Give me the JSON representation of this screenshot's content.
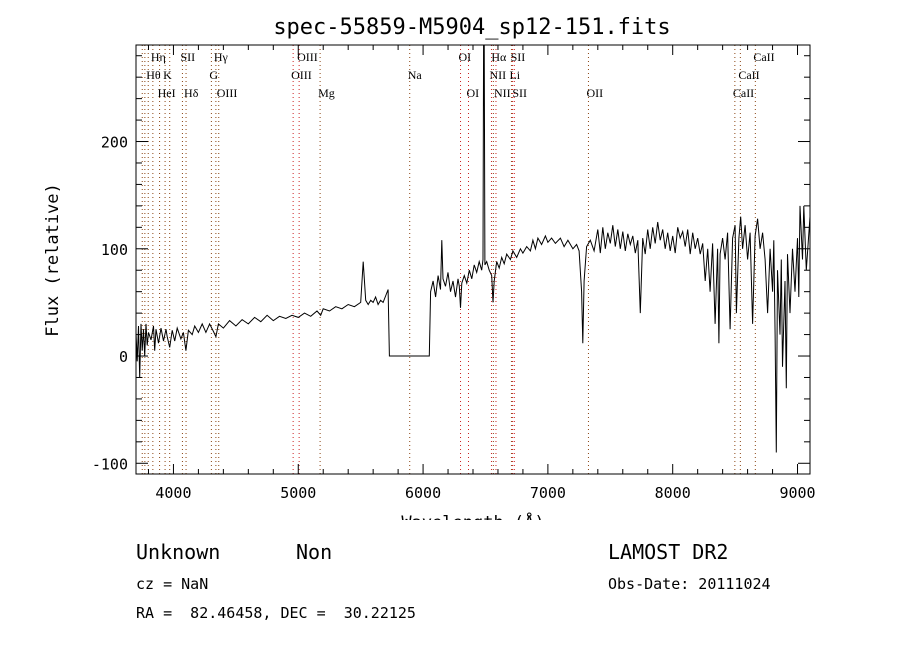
{
  "chart_data": {
    "type": "line",
    "title": "spec-55859-M5904_sp12-151.fits",
    "xlabel": "Wavelength (Å)",
    "ylabel": "Flux (relative)",
    "xlim": [
      3700,
      9100
    ],
    "ylim": [
      -110,
      290
    ],
    "xticks": [
      4000,
      5000,
      6000,
      7000,
      8000,
      9000
    ],
    "yticks": [
      -100,
      0,
      100,
      200
    ],
    "grid": false,
    "series": [
      {
        "values": [
          [
            3700,
            22
          ],
          [
            3710,
            -5
          ],
          [
            3720,
            28
          ],
          [
            3730,
            -20
          ],
          [
            3740,
            30
          ],
          [
            3750,
            5
          ],
          [
            3760,
            25
          ],
          [
            3770,
            0
          ],
          [
            3780,
            30
          ],
          [
            3790,
            10
          ],
          [
            3800,
            22
          ],
          [
            3820,
            15
          ],
          [
            3840,
            28
          ],
          [
            3850,
            5
          ],
          [
            3860,
            25
          ],
          [
            3880,
            12
          ],
          [
            3900,
            26
          ],
          [
            3920,
            14
          ],
          [
            3940,
            25
          ],
          [
            3950,
            18
          ],
          [
            3970,
            8
          ],
          [
            3990,
            24
          ],
          [
            4010,
            14
          ],
          [
            4030,
            26
          ],
          [
            4060,
            16
          ],
          [
            4080,
            22
          ],
          [
            4100,
            5
          ],
          [
            4120,
            24
          ],
          [
            4150,
            20
          ],
          [
            4170,
            28
          ],
          [
            4200,
            22
          ],
          [
            4230,
            30
          ],
          [
            4260,
            22
          ],
          [
            4290,
            30
          ],
          [
            4320,
            23
          ],
          [
            4340,
            18
          ],
          [
            4360,
            30
          ],
          [
            4400,
            26
          ],
          [
            4450,
            33
          ],
          [
            4500,
            28
          ],
          [
            4550,
            34
          ],
          [
            4600,
            30
          ],
          [
            4650,
            36
          ],
          [
            4700,
            32
          ],
          [
            4750,
            38
          ],
          [
            4800,
            33
          ],
          [
            4850,
            37
          ],
          [
            4900,
            35
          ],
          [
            4950,
            38
          ],
          [
            5000,
            36
          ],
          [
            5050,
            40
          ],
          [
            5100,
            37
          ],
          [
            5150,
            42
          ],
          [
            5180,
            38
          ],
          [
            5200,
            44
          ],
          [
            5250,
            42
          ],
          [
            5300,
            46
          ],
          [
            5350,
            44
          ],
          [
            5400,
            48
          ],
          [
            5450,
            46
          ],
          [
            5500,
            50
          ],
          [
            5520,
            88
          ],
          [
            5540,
            52
          ],
          [
            5560,
            48
          ],
          [
            5580,
            52
          ],
          [
            5600,
            50
          ],
          [
            5620,
            55
          ],
          [
            5640,
            48
          ],
          [
            5660,
            52
          ],
          [
            5680,
            50
          ],
          [
            5700,
            56
          ],
          [
            5720,
            62
          ],
          [
            5730,
            0
          ],
          [
            6050,
            0
          ],
          [
            6060,
            60
          ],
          [
            6080,
            70
          ],
          [
            6100,
            55
          ],
          [
            6120,
            75
          ],
          [
            6140,
            62
          ],
          [
            6150,
            108
          ],
          [
            6160,
            72
          ],
          [
            6180,
            65
          ],
          [
            6200,
            78
          ],
          [
            6220,
            60
          ],
          [
            6240,
            70
          ],
          [
            6260,
            55
          ],
          [
            6280,
            72
          ],
          [
            6290,
            65
          ],
          [
            6300,
            45
          ],
          [
            6310,
            68
          ],
          [
            6330,
            75
          ],
          [
            6350,
            68
          ],
          [
            6370,
            80
          ],
          [
            6390,
            72
          ],
          [
            6410,
            85
          ],
          [
            6430,
            78
          ],
          [
            6450,
            88
          ],
          [
            6470,
            80
          ],
          [
            6480,
            90
          ],
          [
            6485,
            300
          ],
          [
            6490,
            300
          ],
          [
            6495,
            85
          ],
          [
            6510,
            88
          ],
          [
            6530,
            80
          ],
          [
            6550,
            75
          ],
          [
            6560,
            50
          ],
          [
            6570,
            70
          ],
          [
            6590,
            88
          ],
          [
            6610,
            82
          ],
          [
            6630,
            92
          ],
          [
            6650,
            86
          ],
          [
            6670,
            95
          ],
          [
            6700,
            90
          ],
          [
            6720,
            98
          ],
          [
            6750,
            92
          ],
          [
            6780,
            100
          ],
          [
            6800,
            96
          ],
          [
            6830,
            102
          ],
          [
            6860,
            98
          ],
          [
            6880,
            108
          ],
          [
            6900,
            100
          ],
          [
            6920,
            110
          ],
          [
            6950,
            104
          ],
          [
            6980,
            112
          ],
          [
            7000,
            106
          ],
          [
            7030,
            110
          ],
          [
            7060,
            105
          ],
          [
            7100,
            110
          ],
          [
            7130,
            102
          ],
          [
            7160,
            108
          ],
          [
            7200,
            100
          ],
          [
            7230,
            104
          ],
          [
            7250,
            98
          ],
          [
            7270,
            60
          ],
          [
            7280,
            12
          ],
          [
            7290,
            70
          ],
          [
            7310,
            102
          ],
          [
            7340,
            108
          ],
          [
            7370,
            98
          ],
          [
            7400,
            118
          ],
          [
            7420,
            96
          ],
          [
            7440,
            120
          ],
          [
            7460,
            100
          ],
          [
            7480,
            115
          ],
          [
            7500,
            105
          ],
          [
            7520,
            122
          ],
          [
            7540,
            102
          ],
          [
            7560,
            118
          ],
          [
            7580,
            100
          ],
          [
            7600,
            116
          ],
          [
            7620,
            98
          ],
          [
            7640,
            114
          ],
          [
            7660,
            104
          ],
          [
            7680,
            112
          ],
          [
            7700,
            96
          ],
          [
            7720,
            108
          ],
          [
            7740,
            40
          ],
          [
            7760,
            110
          ],
          [
            7780,
            95
          ],
          [
            7800,
            118
          ],
          [
            7820,
            100
          ],
          [
            7840,
            120
          ],
          [
            7860,
            105
          ],
          [
            7880,
            125
          ],
          [
            7900,
            108
          ],
          [
            7920,
            118
          ],
          [
            7940,
            100
          ],
          [
            7960,
            115
          ],
          [
            7980,
            98
          ],
          [
            8000,
            112
          ],
          [
            8020,
            96
          ],
          [
            8040,
            120
          ],
          [
            8060,
            110
          ],
          [
            8080,
            116
          ],
          [
            8100,
            102
          ],
          [
            8120,
            118
          ],
          [
            8140,
            95
          ],
          [
            8160,
            115
          ],
          [
            8180,
            100
          ],
          [
            8200,
            110
          ],
          [
            8220,
            95
          ],
          [
            8240,
            105
          ],
          [
            8260,
            70
          ],
          [
            8280,
            100
          ],
          [
            8300,
            60
          ],
          [
            8320,
            105
          ],
          [
            8340,
            30
          ],
          [
            8360,
            100
          ],
          [
            8370,
            12
          ],
          [
            8380,
            95
          ],
          [
            8400,
            110
          ],
          [
            8420,
            90
          ],
          [
            8440,
            115
          ],
          [
            8460,
            25
          ],
          [
            8480,
            110
          ],
          [
            8500,
            122
          ],
          [
            8510,
            40
          ],
          [
            8530,
            110
          ],
          [
            8545,
            130
          ],
          [
            8560,
            100
          ],
          [
            8580,
            122
          ],
          [
            8600,
            90
          ],
          [
            8620,
            115
          ],
          [
            8640,
            30
          ],
          [
            8660,
            112
          ],
          [
            8680,
            128
          ],
          [
            8700,
            100
          ],
          [
            8720,
            115
          ],
          [
            8740,
            90
          ],
          [
            8760,
            40
          ],
          [
            8780,
            100
          ],
          [
            8800,
            60
          ],
          [
            8810,
            108
          ],
          [
            8820,
            20
          ],
          [
            8830,
            -90
          ],
          [
            8840,
            80
          ],
          [
            8860,
            20
          ],
          [
            8870,
            90
          ],
          [
            8880,
            -10
          ],
          [
            8900,
            70
          ],
          [
            8910,
            -30
          ],
          [
            8920,
            95
          ],
          [
            8940,
            40
          ],
          [
            8960,
            100
          ],
          [
            8980,
            60
          ],
          [
            9000,
            110
          ],
          [
            9010,
            55
          ],
          [
            9020,
            140
          ],
          [
            9040,
            90
          ],
          [
            9050,
            140
          ],
          [
            9070,
            80
          ],
          [
            9100,
            130
          ]
        ]
      }
    ],
    "line_labels": [
      {
        "label": "Hη",
        "x": 3835,
        "row": 1,
        "color": "#000000"
      },
      {
        "label": "SII",
        "x": 4072,
        "row": 1,
        "color": "#000000"
      },
      {
        "label": "Hγ",
        "x": 4340,
        "row": 1,
        "color": "#000000"
      },
      {
        "label": "OIII",
        "x": 5007,
        "row": 1,
        "color": "#000000"
      },
      {
        "label": "OI",
        "x": 6300,
        "row": 1,
        "color": "#000000"
      },
      {
        "label": "Hα",
        "x": 6563,
        "row": 1,
        "color": "#000000"
      },
      {
        "label": "SII",
        "x": 6717,
        "row": 1,
        "color": "#000000"
      },
      {
        "label": "CaII",
        "x": 8662,
        "row": 1,
        "color": "#000000"
      },
      {
        "label": "Hθ",
        "x": 3798,
        "row": 2,
        "color": "#000000"
      },
      {
        "label": "K",
        "x": 3933,
        "row": 2,
        "color": "#000000"
      },
      {
        "label": "G",
        "x": 4304,
        "row": 2,
        "color": "#000000"
      },
      {
        "label": "OIII",
        "x": 4959,
        "row": 2,
        "color": "#000000"
      },
      {
        "label": "Na",
        "x": 5893,
        "row": 2,
        "color": "#000000"
      },
      {
        "label": "NII",
        "x": 6548,
        "row": 2,
        "color": "#000000"
      },
      {
        "label": "Li",
        "x": 6708,
        "row": 2,
        "color": "#000000"
      },
      {
        "label": "CaII",
        "x": 8542,
        "row": 2,
        "color": "#000000"
      },
      {
        "label": "HeI",
        "x": 3889,
        "row": 3,
        "color": "#000000"
      },
      {
        "label": "Hδ",
        "x": 4101,
        "row": 3,
        "color": "#000000"
      },
      {
        "label": "OIII",
        "x": 4363,
        "row": 3,
        "color": "#000000"
      },
      {
        "label": "Mg",
        "x": 5175,
        "row": 3,
        "color": "#000000"
      },
      {
        "label": "OI",
        "x": 6364,
        "row": 3,
        "color": "#000000"
      },
      {
        "label": "NII",
        "x": 6584,
        "row": 3,
        "color": "#000000"
      },
      {
        "label": "SII",
        "x": 6731,
        "row": 3,
        "color": "#000000"
      },
      {
        "label": "OII",
        "x": 7325,
        "row": 3,
        "color": "#000000"
      },
      {
        "label": "CaII",
        "x": 8498,
        "row": 3,
        "color": "#000000"
      }
    ],
    "marker_lines": [
      {
        "x": 3750,
        "color": "#8b4513"
      },
      {
        "x": 3771,
        "color": "#8b4513"
      },
      {
        "x": 3798,
        "color": "#8b4513"
      },
      {
        "x": 3835,
        "color": "#8b4513"
      },
      {
        "x": 3889,
        "color": "#8b4513"
      },
      {
        "x": 3933,
        "color": "#8b4513"
      },
      {
        "x": 3970,
        "color": "#8b4513"
      },
      {
        "x": 4072,
        "color": "#8b4513"
      },
      {
        "x": 4101,
        "color": "#8b4513"
      },
      {
        "x": 4304,
        "color": "#8b4513"
      },
      {
        "x": 4340,
        "color": "#8b4513"
      },
      {
        "x": 4363,
        "color": "#8b4513"
      },
      {
        "x": 4959,
        "color": "#cc2222"
      },
      {
        "x": 5007,
        "color": "#cc2222"
      },
      {
        "x": 5175,
        "color": "#8b4513"
      },
      {
        "x": 5893,
        "color": "#8b4513"
      },
      {
        "x": 6300,
        "color": "#cc2222"
      },
      {
        "x": 6364,
        "color": "#cc2222"
      },
      {
        "x": 6548,
        "color": "#cc2222"
      },
      {
        "x": 6563,
        "color": "#8b4513"
      },
      {
        "x": 6584,
        "color": "#cc2222"
      },
      {
        "x": 6708,
        "color": "#8b4513"
      },
      {
        "x": 6717,
        "color": "#cc2222"
      },
      {
        "x": 6731,
        "color": "#cc2222"
      },
      {
        "x": 7325,
        "color": "#8b4513"
      },
      {
        "x": 8498,
        "color": "#8b4513"
      },
      {
        "x": 8542,
        "color": "#8b4513"
      },
      {
        "x": 8662,
        "color": "#8b4513"
      }
    ]
  },
  "info": {
    "classification": "Unknown",
    "subclass": "Non",
    "survey": "LAMOST DR2",
    "cz": "cz = NaN",
    "obs_date": "Obs-Date: 20111024",
    "coords": "RA =  82.46458, DEC =  30.22125"
  }
}
